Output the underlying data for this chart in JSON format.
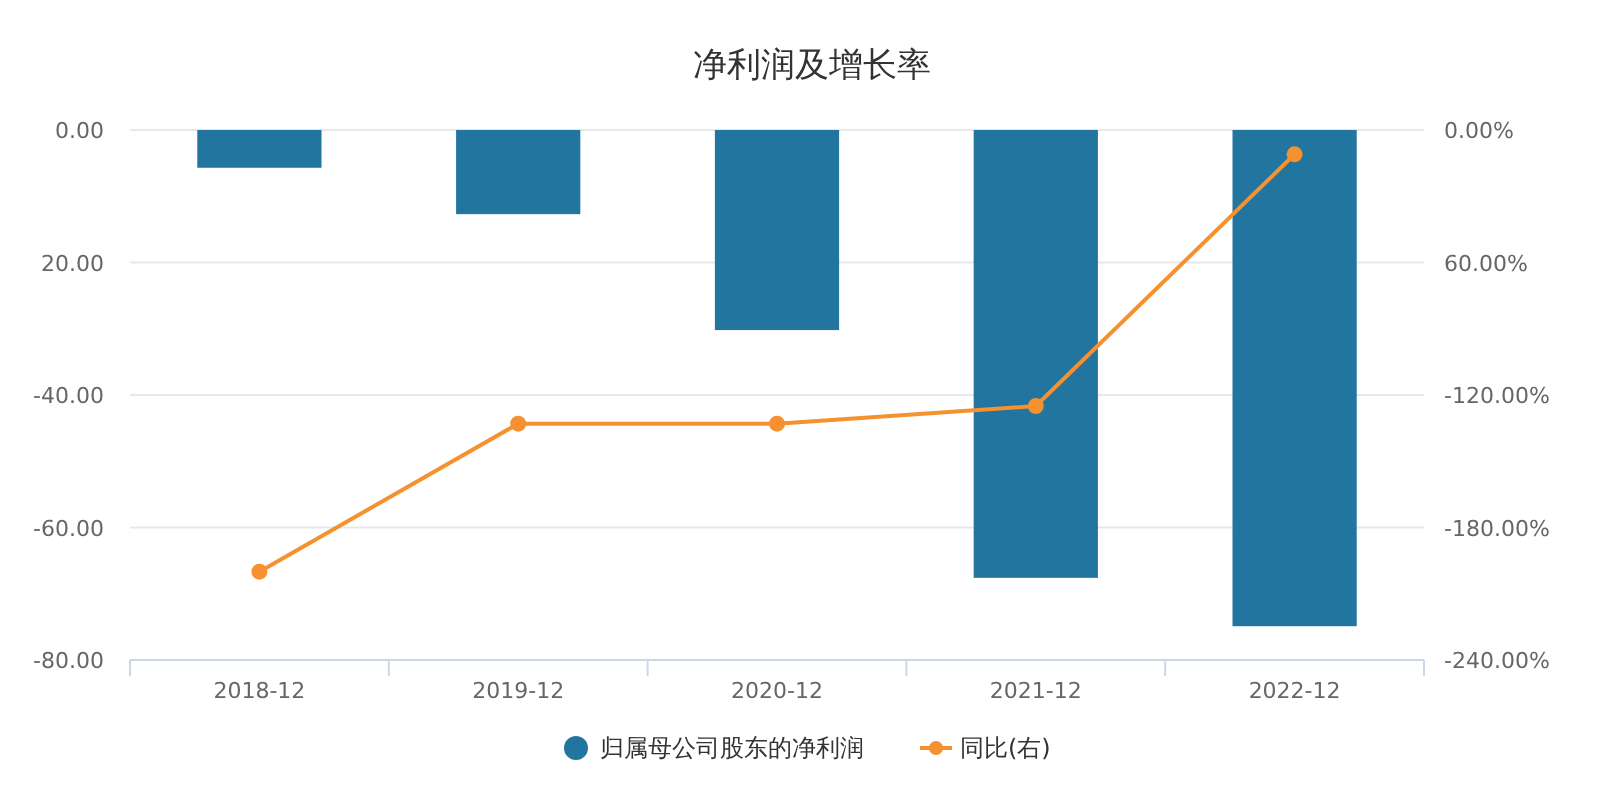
{
  "chart_data": {
    "type": "bar",
    "title": "净利润及增长率",
    "categories": [
      "2018-12",
      "2019-12",
      "2020-12",
      "2021-12",
      "2022-12"
    ],
    "series": [
      {
        "name": "归属母公司股东的净利润",
        "color": "#21759f",
        "values": [
          -5.7,
          -12.7,
          -30.2,
          -67.6,
          -74.9
        ]
      },
      {
        "name": "同比(右)",
        "type": "line",
        "axis": "y2",
        "color": "#f5922f",
        "marker": "circle",
        "values": [
          -200,
          -133,
          -133,
          -125,
          -11
        ]
      }
    ],
    "ylim": [
      -80,
      0
    ],
    "yticks": [
      {
        "value": 0,
        "label": "0.00"
      },
      {
        "value": -20,
        "label": "20.00"
      },
      {
        "value": -40,
        "label": "-40.00"
      },
      {
        "value": -60,
        "label": "-60.00"
      },
      {
        "value": -80,
        "label": "-80.00"
      }
    ],
    "y2lim": [
      -240,
      0
    ],
    "y2ticks": [
      {
        "value": 0,
        "label": "0.00%"
      },
      {
        "value": -60,
        "label": "60.00%"
      },
      {
        "value": -120,
        "label": "-120.00%"
      },
      {
        "value": -180,
        "label": "-180.00%"
      },
      {
        "value": -240,
        "label": "-240.00%"
      }
    ],
    "grid": "y",
    "legend": "bottom"
  }
}
